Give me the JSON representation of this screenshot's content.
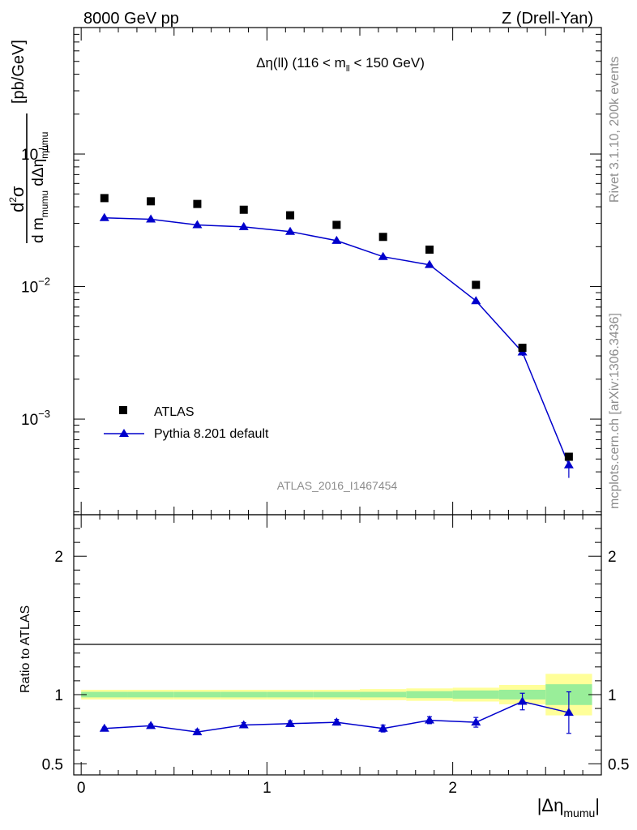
{
  "header": {
    "left": "8000 GeV pp",
    "right": "Z (Drell-Yan)"
  },
  "side_text": {
    "rivet": "Rivet 3.1.10,  200k events",
    "mcplots": "mcplots.cern.ch [arXiv:1306.3436]"
  },
  "chart_data": [
    {
      "type": "scatter",
      "panel": "main",
      "title": {
        "main": "Δη(ll) (116 < m",
        "sub": "ll",
        "tail": " < 150 GeV)"
      },
      "analysis_label": "ATLAS_2016_I1467454",
      "ylabel": {
        "unit": "[pb/GeV]"
      },
      "yscale": "log",
      "ylim": [
        0.00019,
        0.9
      ],
      "xlim": [
        -0.04,
        2.8
      ],
      "ytick_labels": [
        {
          "base": "10",
          "exp": "−1",
          "value": 0.1
        },
        {
          "base": "10",
          "exp": "−2",
          "value": 0.01
        },
        {
          "base": "10",
          "exp": "−3",
          "value": 0.001
        }
      ],
      "legend_position": "bottom-left",
      "x": [
        0.125,
        0.375,
        0.625,
        0.875,
        1.125,
        1.375,
        1.625,
        1.875,
        2.125,
        2.375,
        2.625
      ],
      "series": [
        {
          "name": "ATLAS",
          "marker": "square",
          "color": "#000000",
          "values": [
            0.0465,
            0.044,
            0.042,
            0.038,
            0.0345,
            0.0292,
            0.0237,
            0.019,
            0.0103,
            0.00345,
            0.00052
          ],
          "err": [
            0.0008,
            0.0008,
            0.0008,
            0.0007,
            0.0006,
            0.0005,
            0.0005,
            0.0004,
            0.0003,
            0.00012,
            3e-05
          ]
        },
        {
          "name": "Pythia 8.201 default",
          "marker": "triangle",
          "line": true,
          "color": "#0000cc",
          "values": [
            0.033,
            0.0322,
            0.0292,
            0.0282,
            0.026,
            0.0222,
            0.0168,
            0.0146,
            0.0078,
            0.0032,
            0.00045
          ],
          "err_lo": [
            0.0006,
            0.0006,
            0.0006,
            0.0005,
            0.0005,
            0.0004,
            0.0004,
            0.0004,
            0.0003,
            0.0002,
            9e-05
          ],
          "err_hi": [
            0.0006,
            0.0006,
            0.0006,
            0.0005,
            0.0005,
            0.0004,
            0.0004,
            0.0004,
            0.0003,
            0.0002,
            7e-05
          ]
        }
      ]
    },
    {
      "type": "line",
      "panel": "ratio",
      "ylabel": "Ratio to ATLAS",
      "xlabel": {
        "pre": "|Δη",
        "sub": "mumu",
        "post": "|"
      },
      "ylim": [
        0.42,
        2.3
      ],
      "xlim": [
        -0.04,
        2.8
      ],
      "ytick_labels": [
        "0.5",
        "1",
        "2"
      ],
      "ytick_values": [
        0.5,
        1,
        2
      ],
      "xtick_labels": [
        "0",
        "1",
        "2"
      ],
      "xtick_values": [
        0,
        1,
        2
      ],
      "reference": 1,
      "bin_edges": [
        0,
        0.25,
        0.5,
        0.75,
        1.0,
        1.25,
        1.5,
        1.75,
        2.0,
        2.25,
        2.5,
        2.75
      ],
      "band_colors": {
        "inner": "#99ee99",
        "outer": "#ffff99"
      },
      "band_inner": [
        0.02,
        0.02,
        0.02,
        0.02,
        0.02,
        0.02,
        0.02,
        0.025,
        0.03,
        0.035,
        0.075
      ],
      "band_outer": [
        0.035,
        0.035,
        0.035,
        0.035,
        0.035,
        0.035,
        0.04,
        0.045,
        0.05,
        0.07,
        0.15
      ],
      "series": [
        {
          "name": "Pythia 8.201 default",
          "color": "#0000cc",
          "x": [
            0.125,
            0.375,
            0.625,
            0.875,
            1.125,
            1.375,
            1.625,
            1.875,
            2.125,
            2.375,
            2.625
          ],
          "values": [
            0.755,
            0.775,
            0.73,
            0.78,
            0.79,
            0.8,
            0.755,
            0.815,
            0.8,
            0.95,
            0.87
          ],
          "err": [
            0.01,
            0.012,
            0.018,
            0.018,
            0.02,
            0.02,
            0.025,
            0.025,
            0.035,
            0.06,
            0.15
          ]
        }
      ]
    }
  ]
}
